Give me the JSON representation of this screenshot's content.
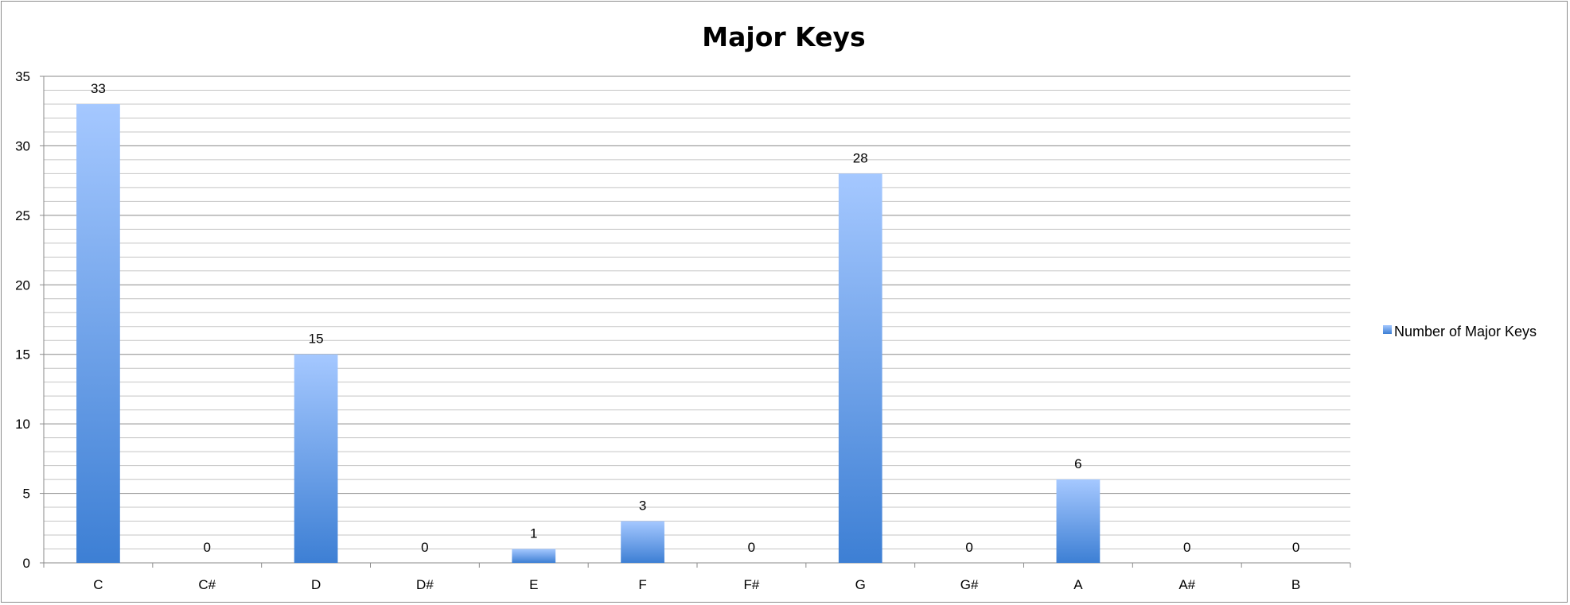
{
  "chart_data": {
    "type": "bar",
    "title": "Major Keys",
    "xlabel": "",
    "ylabel": "",
    "categories": [
      "C",
      "C#",
      "D",
      "D#",
      "E",
      "F",
      "F#",
      "G",
      "G#",
      "A",
      "A#",
      "B"
    ],
    "series": [
      {
        "name": "Number of Major Keys",
        "values": [
          33,
          0,
          15,
          0,
          1,
          3,
          0,
          28,
          0,
          6,
          0,
          0
        ],
        "color": "#4a86d8"
      }
    ],
    "ylim": [
      0,
      35
    ],
    "y_major_step": 5,
    "y_minor_step": 1,
    "y_ticks": [
      "0",
      "5",
      "10",
      "15",
      "20",
      "25",
      "30",
      "35"
    ],
    "data_labels": [
      "33",
      "0",
      "15",
      "0",
      "1",
      "3",
      "0",
      "28",
      "0",
      "6",
      "0",
      "0"
    ],
    "grid": true,
    "legend_position": "right"
  }
}
